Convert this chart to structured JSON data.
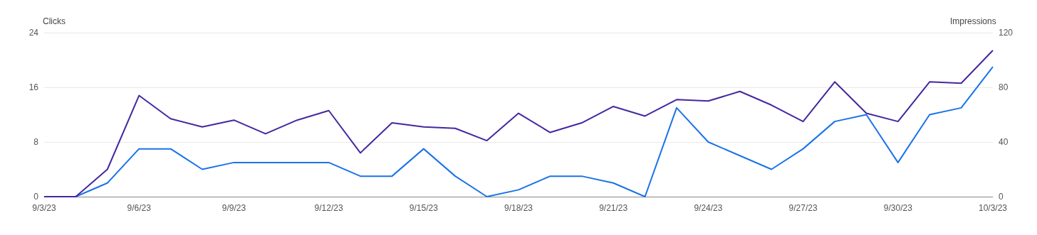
{
  "chart_data": {
    "type": "line",
    "ylabel": "Clicks",
    "y2label": "Impressions",
    "categories": [
      "9/3/23",
      null,
      null,
      "9/6/23",
      null,
      null,
      "9/9/23",
      null,
      null,
      "9/12/23",
      null,
      null,
      "9/15/23",
      null,
      null,
      "9/18/23",
      null,
      null,
      "9/21/23",
      null,
      null,
      "9/24/23",
      null,
      null,
      "9/27/23",
      null,
      null,
      "9/30/23",
      null,
      null,
      "10/3/23"
    ],
    "series": [
      {
        "color": "#1a73e8",
        "values": [
          0,
          0,
          2,
          7,
          7,
          4,
          5,
          5,
          5,
          5,
          3,
          3,
          7,
          3,
          0,
          1,
          3,
          3,
          2,
          0,
          13,
          8,
          6,
          4,
          7,
          11,
          12,
          5,
          12,
          13,
          19
        ]
      },
      {
        "color": "#4527a0",
        "axis": "y2",
        "values": [
          0,
          0,
          20,
          74,
          57,
          51,
          56,
          46,
          56,
          63,
          32,
          54,
          51,
          50,
          41,
          61,
          47,
          54,
          66,
          59,
          71,
          70,
          77,
          67,
          55,
          84,
          61,
          55,
          84,
          83,
          107
        ]
      }
    ],
    "ylim": [
      0,
      24
    ],
    "yticks": [
      0,
      8,
      16,
      24
    ],
    "y2lim": [
      0,
      120
    ],
    "y2ticks": [
      0,
      40,
      80,
      120
    ],
    "grid": "y",
    "marker": "none",
    "line_style": "solid"
  }
}
